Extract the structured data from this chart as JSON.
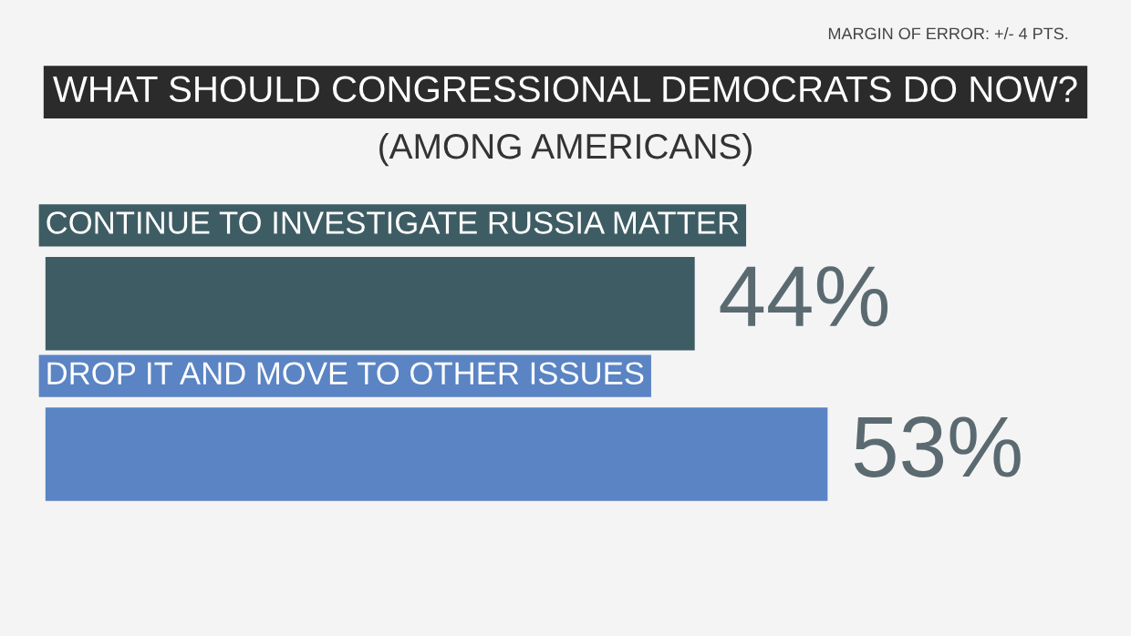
{
  "chart_data": {
    "type": "bar",
    "orientation": "horizontal",
    "title": "WHAT SHOULD CONGRESSIONAL DEMOCRATS DO NOW?",
    "subtitle": "(AMONG AMERICANS)",
    "annotations": [
      "MARGIN OF ERROR: +/- 4 PTS."
    ],
    "categories": [
      "CONTINUE TO INVESTIGATE RUSSIA MATTER",
      "DROP IT AND MOVE TO OTHER ISSUES"
    ],
    "values": [
      44,
      53
    ],
    "colors": [
      "#3e5c63",
      "#5a84c4"
    ],
    "value_labels": [
      "44%",
      "53%"
    ]
  }
}
